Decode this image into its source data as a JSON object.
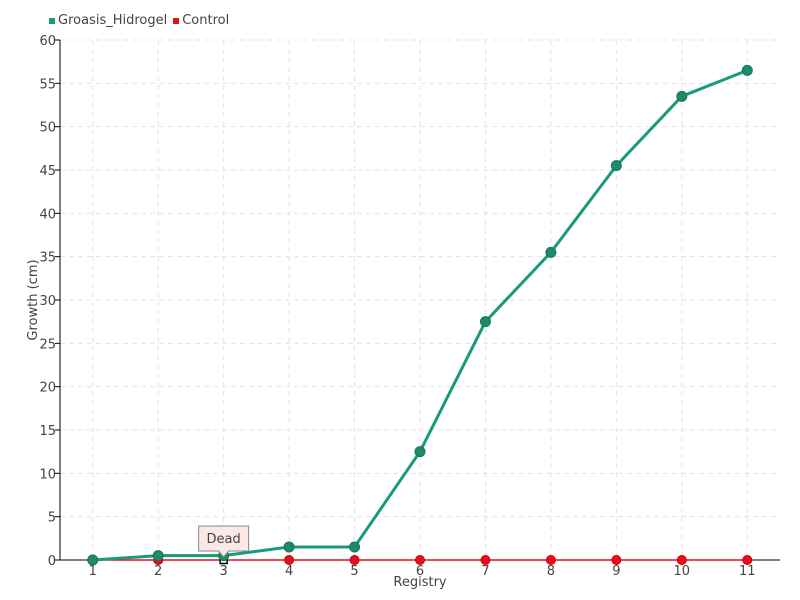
{
  "chart_data": {
    "type": "line",
    "xlabel": "Registry",
    "ylabel": "Growth (cm)",
    "categories": [
      "1",
      "2",
      "3",
      "4",
      "5",
      "6",
      "7",
      "8",
      "9",
      "10",
      "11"
    ],
    "ylim": [
      0,
      60
    ],
    "yticks": [
      0,
      5,
      10,
      15,
      20,
      25,
      30,
      35,
      40,
      45,
      50,
      55,
      60
    ],
    "grid": true,
    "legend_position": "top-left",
    "series": [
      {
        "name": "Groasis_Hidrogel",
        "color": "#1a9a7c",
        "values": [
          0,
          0.5,
          0.5,
          1.5,
          1.5,
          12.5,
          27.5,
          35.5,
          45.5,
          53.5,
          56.5
        ]
      },
      {
        "name": "Control",
        "color": "#e0101e",
        "values": [
          0,
          0,
          0,
          0,
          0,
          0,
          0,
          0,
          0,
          0,
          0
        ]
      }
    ],
    "annotations": [
      {
        "series": "Control",
        "category": "3",
        "text": "Dead"
      }
    ]
  }
}
